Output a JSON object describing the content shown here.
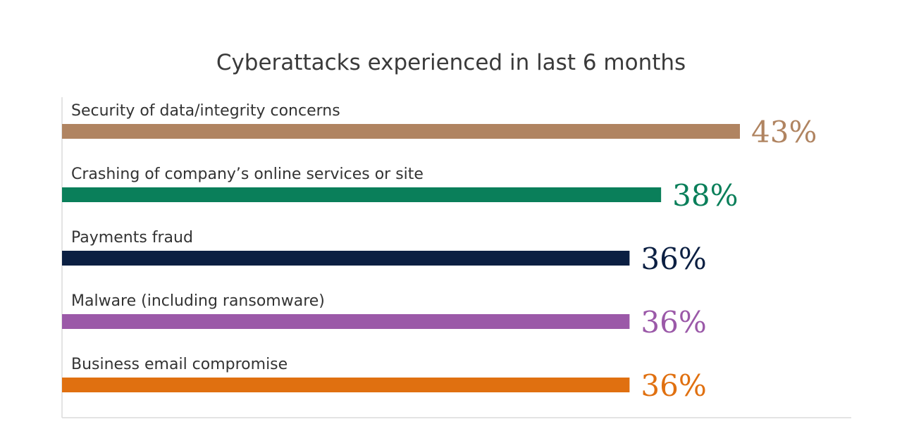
{
  "chart_data": {
    "type": "bar",
    "orientation": "horizontal",
    "title": "Cyberattacks experienced in last 6 months",
    "xlabel": "",
    "ylabel": "",
    "xlim": [
      0,
      43
    ],
    "grid": false,
    "categories": [
      "Security of data/integrity concerns",
      "Crashing of company’s online services or site",
      "Payments fraud",
      "Malware (including ransomware)",
      "Business email compromise"
    ],
    "values": [
      43,
      38,
      36,
      36,
      36
    ],
    "value_labels": [
      "43%",
      "38%",
      "36%",
      "36%",
      "36%"
    ],
    "colors": [
      "#b08461",
      "#0a7f5a",
      "#0b1f42",
      "#9b59a8",
      "#e07010"
    ]
  }
}
